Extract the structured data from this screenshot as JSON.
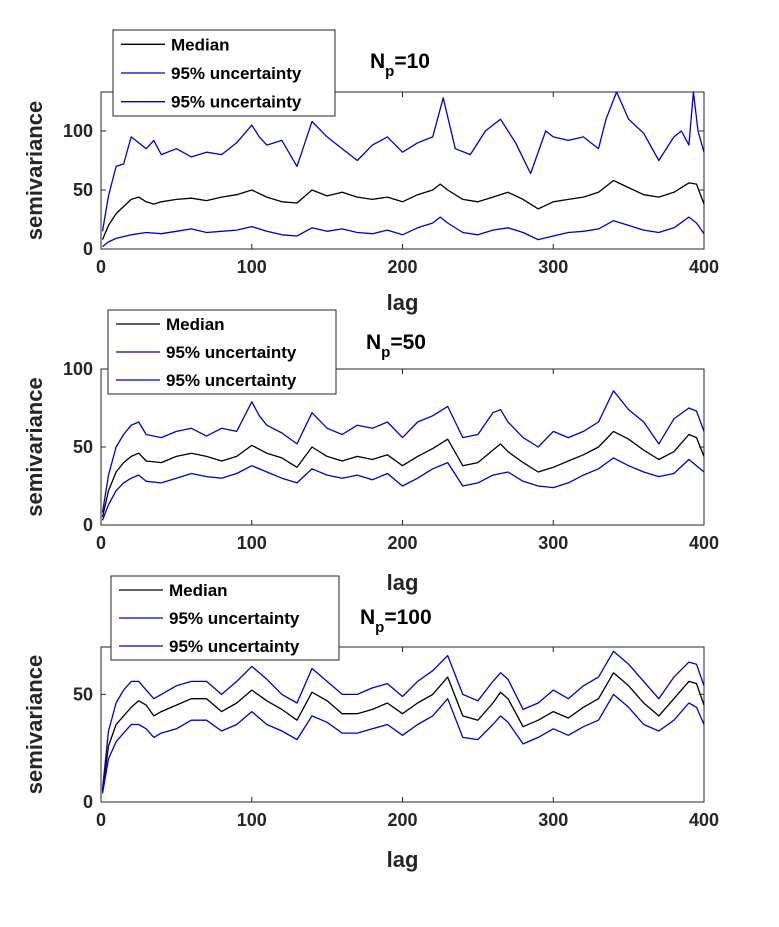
{
  "chart_data": [
    {
      "type": "line",
      "title": "N_p=10",
      "title_main": "N",
      "title_sub": "p",
      "title_tail": "=10",
      "xlabel": "lag",
      "ylabel": "semivariance",
      "xlim": [
        0,
        400
      ],
      "ylim": [
        0,
        133
      ],
      "xticks": [
        0,
        100,
        200,
        300,
        400
      ],
      "yticks": [
        0,
        50,
        100
      ],
      "xtick_labels": [
        "0",
        "100",
        "200",
        "300",
        "400"
      ],
      "ytick_labels": [
        "0",
        "50",
        "100"
      ],
      "grid": false,
      "legend_position": "top-left",
      "series": [
        {
          "name": "Median",
          "color": "#000000",
          "x": [
            1,
            5,
            10,
            15,
            20,
            25,
            30,
            35,
            40,
            50,
            60,
            70,
            80,
            90,
            100,
            110,
            120,
            130,
            140,
            150,
            160,
            170,
            180,
            190,
            200,
            210,
            220,
            225,
            230,
            240,
            250,
            260,
            270,
            280,
            290,
            300,
            310,
            320,
            330,
            340,
            350,
            360,
            370,
            380,
            390,
            395,
            400
          ],
          "y": [
            8,
            20,
            30,
            36,
            42,
            44,
            40,
            38,
            40,
            42,
            43,
            41,
            44,
            46,
            50,
            44,
            40,
            39,
            50,
            45,
            48,
            44,
            42,
            44,
            40,
            46,
            50,
            55,
            50,
            42,
            40,
            44,
            48,
            42,
            34,
            40,
            42,
            44,
            48,
            58,
            52,
            46,
            44,
            48,
            56,
            55,
            38
          ]
        },
        {
          "name": "95% uncertainty",
          "color": "#0000cc",
          "x": [
            1,
            5,
            10,
            15,
            20,
            25,
            30,
            35,
            40,
            50,
            60,
            70,
            80,
            90,
            100,
            105,
            110,
            120,
            130,
            140,
            150,
            160,
            170,
            180,
            190,
            200,
            210,
            220,
            227,
            235,
            245,
            255,
            265,
            275,
            285,
            295,
            300,
            310,
            320,
            330,
            335,
            342,
            350,
            360,
            370,
            380,
            385,
            390,
            393,
            396,
            400
          ],
          "y": [
            15,
            45,
            70,
            72,
            95,
            90,
            85,
            92,
            80,
            85,
            78,
            82,
            80,
            90,
            105,
            95,
            88,
            92,
            70,
            108,
            95,
            85,
            75,
            88,
            95,
            82,
            90,
            95,
            128,
            85,
            80,
            100,
            110,
            90,
            64,
            100,
            95,
            92,
            95,
            85,
            110,
            133,
            110,
            98,
            75,
            95,
            100,
            88,
            133,
            100,
            82
          ]
        },
        {
          "name": "95% uncertainty",
          "color": "#0000cc",
          "x": [
            1,
            5,
            10,
            20,
            30,
            40,
            50,
            60,
            70,
            80,
            90,
            100,
            110,
            120,
            130,
            140,
            150,
            160,
            170,
            180,
            190,
            200,
            210,
            220,
            225,
            230,
            240,
            250,
            260,
            270,
            280,
            290,
            300,
            310,
            320,
            330,
            340,
            350,
            360,
            370,
            380,
            390,
            395,
            400
          ],
          "y": [
            2,
            6,
            9,
            12,
            14,
            13,
            15,
            17,
            14,
            15,
            16,
            19,
            15,
            12,
            11,
            18,
            15,
            17,
            14,
            13,
            16,
            12,
            18,
            22,
            27,
            22,
            14,
            12,
            16,
            18,
            14,
            8,
            11,
            14,
            15,
            17,
            24,
            20,
            16,
            14,
            18,
            27,
            22,
            13
          ]
        }
      ],
      "legend": [
        "Median",
        "95% uncertainty",
        "95% uncertainty"
      ]
    },
    {
      "type": "line",
      "title": "N_p=50",
      "title_main": "N",
      "title_sub": "p",
      "title_tail": "=50",
      "xlabel": "lag",
      "ylabel": "semivariance",
      "xlim": [
        0,
        400
      ],
      "ylim": [
        0,
        100
      ],
      "xticks": [
        0,
        100,
        200,
        300,
        400
      ],
      "yticks": [
        0,
        50,
        100
      ],
      "xtick_labels": [
        "0",
        "100",
        "200",
        "300",
        "400"
      ],
      "ytick_labels": [
        "0",
        "50",
        "100"
      ],
      "grid": false,
      "legend_position": "top-left",
      "series": [
        {
          "name": "Median",
          "color": "#000000",
          "x": [
            1,
            5,
            10,
            15,
            20,
            25,
            30,
            40,
            50,
            60,
            70,
            80,
            90,
            100,
            110,
            120,
            130,
            140,
            150,
            160,
            170,
            180,
            190,
            200,
            210,
            220,
            230,
            240,
            250,
            260,
            265,
            270,
            280,
            290,
            300,
            310,
            320,
            330,
            340,
            350,
            360,
            370,
            380,
            390,
            395,
            400
          ],
          "y": [
            5,
            22,
            34,
            40,
            44,
            46,
            41,
            40,
            44,
            46,
            44,
            41,
            44,
            51,
            46,
            43,
            37,
            50,
            44,
            41,
            44,
            42,
            45,
            38,
            44,
            49,
            55,
            38,
            40,
            48,
            52,
            47,
            40,
            34,
            37,
            41,
            45,
            50,
            60,
            55,
            48,
            42,
            47,
            58,
            56,
            44
          ]
        },
        {
          "name": "95% uncertainty",
          "color": "#0000cc",
          "x": [
            1,
            5,
            10,
            15,
            20,
            25,
            30,
            40,
            50,
            60,
            70,
            80,
            90,
            100,
            105,
            110,
            120,
            130,
            140,
            150,
            160,
            170,
            180,
            190,
            200,
            210,
            220,
            230,
            240,
            250,
            260,
            265,
            270,
            280,
            290,
            300,
            310,
            320,
            330,
            340,
            350,
            360,
            370,
            380,
            390,
            395,
            400
          ],
          "y": [
            8,
            32,
            50,
            58,
            64,
            66,
            58,
            56,
            60,
            62,
            57,
            62,
            60,
            79,
            70,
            64,
            59,
            52,
            72,
            62,
            58,
            64,
            62,
            66,
            56,
            66,
            70,
            76,
            56,
            58,
            72,
            74,
            66,
            56,
            50,
            60,
            56,
            60,
            66,
            86,
            74,
            66,
            52,
            68,
            75,
            73,
            60
          ]
        },
        {
          "name": "95% uncertainty",
          "color": "#0000cc",
          "x": [
            1,
            5,
            10,
            15,
            20,
            25,
            30,
            40,
            50,
            60,
            70,
            80,
            90,
            100,
            110,
            120,
            130,
            140,
            150,
            160,
            170,
            180,
            190,
            200,
            210,
            220,
            230,
            240,
            250,
            260,
            270,
            280,
            290,
            300,
            310,
            320,
            330,
            340,
            350,
            360,
            370,
            380,
            390,
            400
          ],
          "y": [
            3,
            13,
            22,
            27,
            30,
            32,
            28,
            27,
            30,
            33,
            31,
            30,
            33,
            38,
            34,
            30,
            27,
            36,
            32,
            30,
            32,
            29,
            33,
            25,
            30,
            36,
            40,
            25,
            27,
            32,
            34,
            28,
            25,
            24,
            27,
            32,
            36,
            43,
            38,
            34,
            31,
            33,
            42,
            34
          ]
        }
      ],
      "legend": [
        "Median",
        "95% uncertainty",
        "95% uncertainty"
      ]
    },
    {
      "type": "line",
      "title": "N_p=100",
      "title_main": "N",
      "title_sub": "p",
      "title_tail": "=100",
      "xlabel": "lag",
      "ylabel": "semivariance",
      "xlim": [
        0,
        400
      ],
      "ylim": [
        0,
        72
      ],
      "xticks": [
        0,
        100,
        200,
        300,
        400
      ],
      "yticks": [
        0,
        50
      ],
      "xtick_labels": [
        "0",
        "100",
        "200",
        "300",
        "400"
      ],
      "ytick_labels": [
        "0",
        "50"
      ],
      "grid": false,
      "legend_position": "top-left",
      "series": [
        {
          "name": "Median",
          "color": "#000000",
          "x": [
            1,
            5,
            10,
            15,
            20,
            25,
            30,
            35,
            40,
            50,
            60,
            70,
            80,
            90,
            100,
            110,
            120,
            130,
            140,
            150,
            160,
            170,
            180,
            190,
            200,
            210,
            220,
            230,
            240,
            250,
            260,
            265,
            270,
            280,
            290,
            300,
            310,
            320,
            330,
            340,
            350,
            360,
            370,
            380,
            390,
            395,
            400
          ],
          "y": [
            5,
            26,
            36,
            40,
            44,
            47,
            45,
            40,
            42,
            45,
            48,
            48,
            42,
            46,
            52,
            47,
            43,
            38,
            51,
            47,
            41,
            41,
            43,
            46,
            41,
            46,
            50,
            58,
            40,
            38,
            46,
            51,
            48,
            35,
            38,
            42,
            39,
            44,
            48,
            60,
            54,
            46,
            40,
            48,
            56,
            55,
            45
          ]
        },
        {
          "name": "95% uncertainty",
          "color": "#0000cc",
          "x": [
            1,
            5,
            10,
            15,
            20,
            25,
            30,
            35,
            40,
            50,
            60,
            70,
            80,
            90,
            100,
            110,
            120,
            130,
            140,
            150,
            160,
            170,
            180,
            190,
            200,
            210,
            220,
            230,
            240,
            250,
            260,
            265,
            270,
            280,
            290,
            300,
            310,
            320,
            330,
            340,
            350,
            360,
            370,
            380,
            390,
            395,
            400
          ],
          "y": [
            6,
            33,
            46,
            52,
            56,
            56,
            52,
            48,
            50,
            54,
            56,
            56,
            50,
            56,
            63,
            57,
            50,
            46,
            62,
            56,
            50,
            50,
            53,
            55,
            49,
            56,
            61,
            68,
            50,
            47,
            56,
            60,
            57,
            43,
            46,
            52,
            48,
            54,
            58,
            70,
            64,
            56,
            48,
            58,
            65,
            64,
            54
          ]
        },
        {
          "name": "95% uncertainty",
          "color": "#0000cc",
          "x": [
            1,
            5,
            10,
            15,
            20,
            25,
            30,
            35,
            40,
            50,
            60,
            70,
            80,
            90,
            100,
            110,
            120,
            130,
            140,
            150,
            160,
            170,
            180,
            190,
            200,
            210,
            220,
            230,
            240,
            250,
            260,
            265,
            270,
            280,
            290,
            300,
            310,
            320,
            330,
            340,
            350,
            360,
            370,
            380,
            390,
            395,
            400
          ],
          "y": [
            4,
            20,
            28,
            32,
            36,
            36,
            34,
            30,
            32,
            34,
            38,
            38,
            33,
            36,
            42,
            36,
            33,
            29,
            40,
            37,
            32,
            32,
            34,
            36,
            31,
            36,
            40,
            48,
            30,
            29,
            36,
            40,
            37,
            27,
            30,
            34,
            31,
            35,
            38,
            50,
            44,
            36,
            33,
            38,
            46,
            44,
            36
          ]
        }
      ],
      "legend": [
        "Median",
        "95% uncertainty",
        "95% uncertainty"
      ]
    }
  ]
}
